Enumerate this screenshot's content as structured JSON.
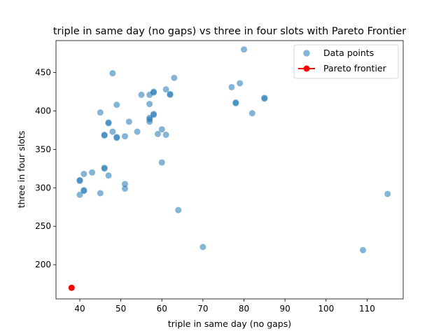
{
  "chart_data": {
    "type": "scatter",
    "title": "triple in same day (no gaps) vs three in four slots with Pareto Frontier",
    "xlabel": "triple in same day (no gaps)",
    "ylabel": "three in four slots",
    "xlim": [
      34.2,
      118.8
    ],
    "ylim": [
      155.5,
      491.5
    ],
    "x_ticks": [
      40,
      50,
      60,
      70,
      80,
      90,
      100,
      110
    ],
    "y_ticks": [
      200,
      250,
      300,
      350,
      400,
      450
    ],
    "grid": false,
    "legend_position": "top-right",
    "colors": {
      "data_points": "#1f77b4",
      "pareto": "#ff0000"
    },
    "series": [
      {
        "name": "Data points",
        "kind": "scatter",
        "points": [
          [
            40,
            291
          ],
          [
            40,
            310
          ],
          [
            40,
            309
          ],
          [
            41,
            297
          ],
          [
            41,
            296
          ],
          [
            41,
            318
          ],
          [
            43,
            320
          ],
          [
            45,
            293
          ],
          [
            45,
            398
          ],
          [
            46,
            326
          ],
          [
            46,
            325
          ],
          [
            46,
            369
          ],
          [
            46,
            368
          ],
          [
            47,
            316
          ],
          [
            47,
            385
          ],
          [
            47,
            384
          ],
          [
            48,
            449
          ],
          [
            48,
            373
          ],
          [
            49,
            366
          ],
          [
            49,
            365
          ],
          [
            49,
            408
          ],
          [
            51,
            305
          ],
          [
            51,
            299
          ],
          [
            51,
            367
          ],
          [
            52,
            386
          ],
          [
            54,
            373
          ],
          [
            55,
            421
          ],
          [
            57,
            386
          ],
          [
            57,
            389
          ],
          [
            57,
            391
          ],
          [
            57,
            409
          ],
          [
            57,
            421
          ],
          [
            58,
            396
          ],
          [
            58,
            395
          ],
          [
            58,
            424
          ],
          [
            58,
            425
          ],
          [
            59,
            370
          ],
          [
            60,
            376
          ],
          [
            60,
            333
          ],
          [
            61,
            369
          ],
          [
            61,
            428
          ],
          [
            62,
            421
          ],
          [
            62,
            422
          ],
          [
            63,
            443
          ],
          [
            64,
            271
          ],
          [
            70,
            223
          ],
          [
            77,
            431
          ],
          [
            78,
            410
          ],
          [
            78,
            411
          ],
          [
            79,
            436
          ],
          [
            80,
            480
          ],
          [
            82,
            397
          ],
          [
            85,
            416
          ],
          [
            85,
            417
          ],
          [
            109,
            219
          ],
          [
            115,
            292
          ]
        ]
      },
      {
        "name": "Pareto frontier",
        "kind": "line",
        "points": [
          [
            38,
            170
          ]
        ]
      }
    ]
  }
}
